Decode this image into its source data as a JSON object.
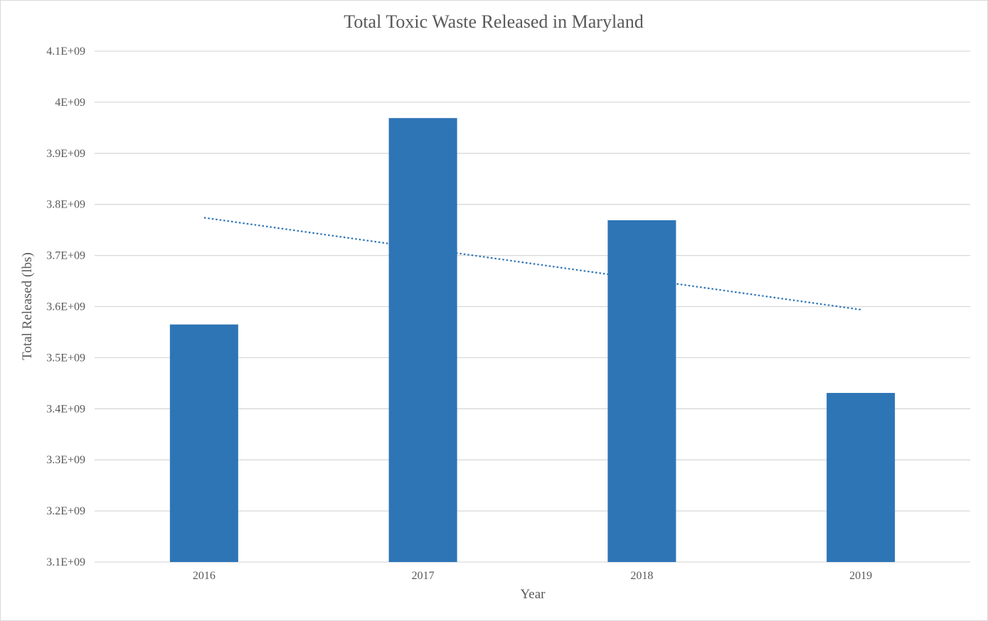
{
  "chart_data": {
    "type": "bar",
    "title": "Total Toxic Waste Released in Maryland",
    "xlabel": "Year",
    "ylabel": "Total Released (lbs)",
    "categories": [
      "2016",
      "2017",
      "2018",
      "2019"
    ],
    "values": [
      3565000000,
      3969000000,
      3769000000,
      3431000000
    ],
    "ylim": [
      3100000000,
      4100000000
    ],
    "y_ticks": [
      3100000000,
      3200000000,
      3300000000,
      3400000000,
      3500000000,
      3600000000,
      3700000000,
      3800000000,
      3900000000,
      4000000000,
      4100000000
    ],
    "y_tick_labels": [
      "3.1E+09",
      "3.2E+09",
      "3.3E+09",
      "3.4E+09",
      "3.5E+09",
      "3.6E+09",
      "3.7E+09",
      "3.8E+09",
      "3.9E+09",
      "4E+09",
      "4.1E+09"
    ],
    "trendline": {
      "type": "linear",
      "style": "dotted",
      "start_value": 3774000000,
      "end_value": 3594000000
    },
    "grid": true,
    "legend": "none",
    "colors": {
      "bar": "#2e75b6",
      "trendline": "#2e75b6",
      "grid": "#d9d9d9",
      "text": "#595959"
    }
  }
}
